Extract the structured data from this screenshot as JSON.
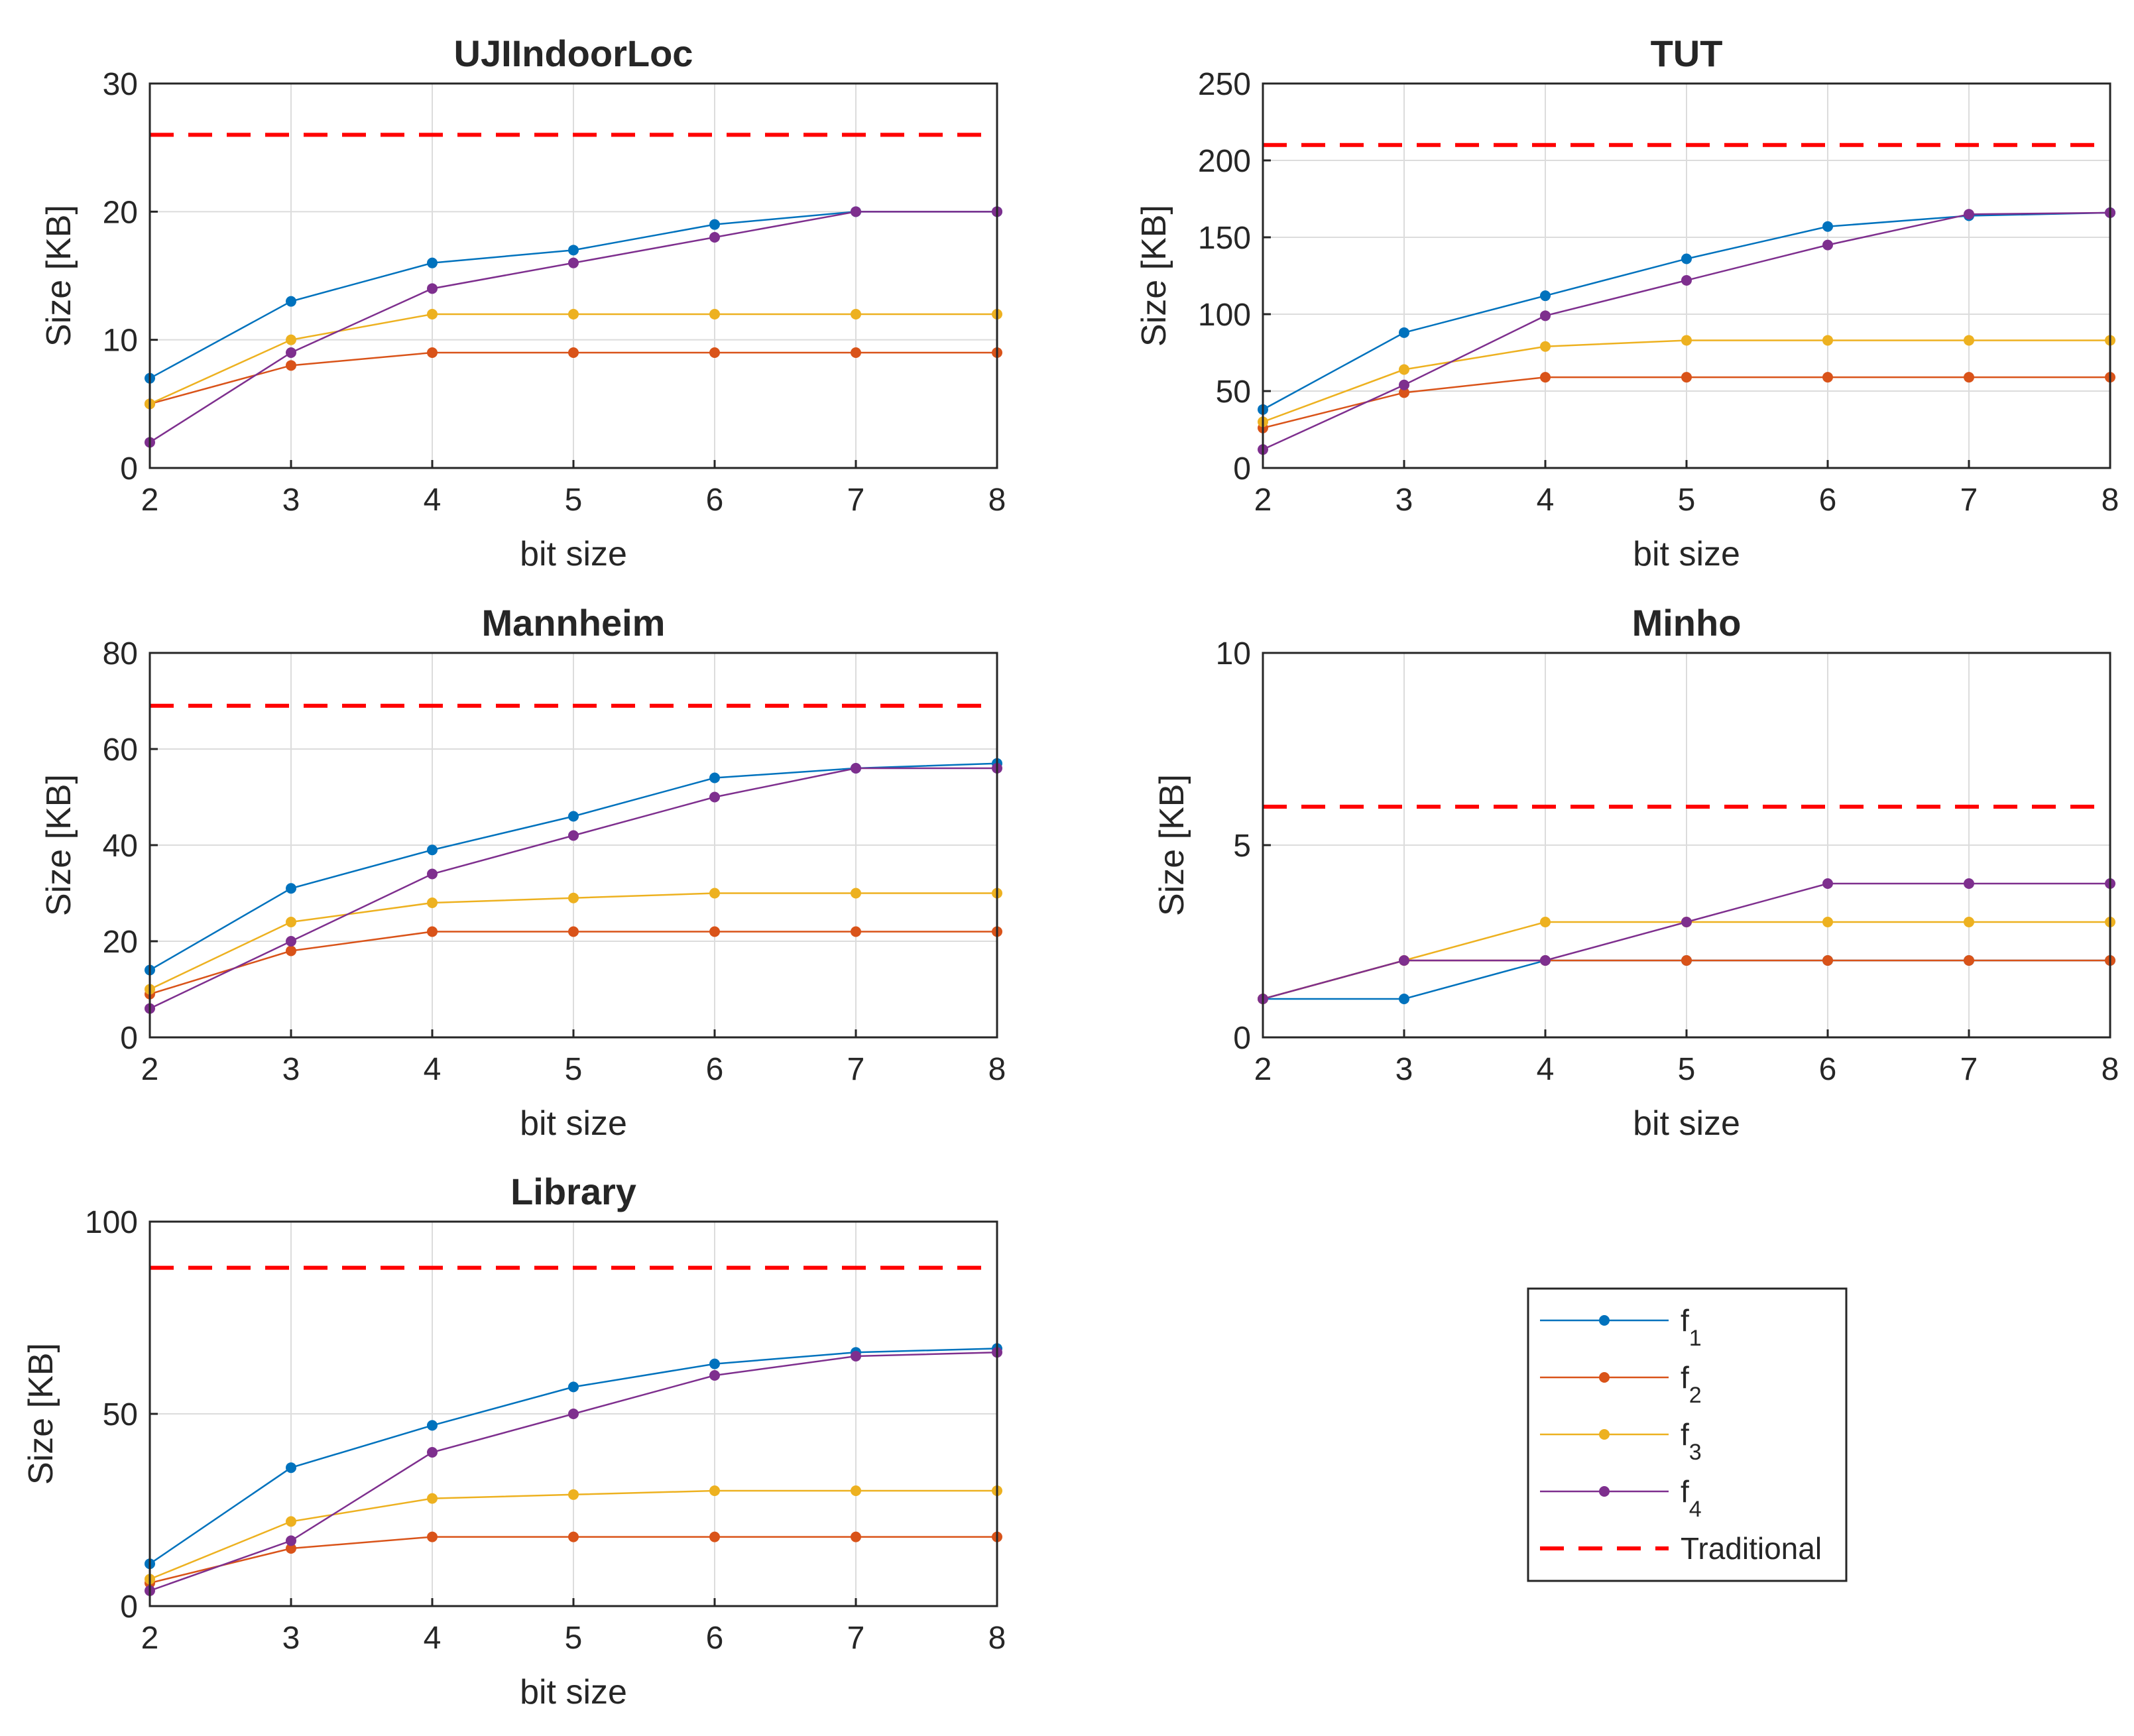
{
  "colors": {
    "f1": "#0072BD",
    "f2": "#D95319",
    "f3": "#EDB120",
    "f4": "#7E2F8E",
    "traditional": "#FF0000",
    "grid": "#DCDCDC",
    "axis": "#262626"
  },
  "legend": {
    "entries": [
      {
        "key": "f1",
        "base": "f",
        "sub": "1"
      },
      {
        "key": "f2",
        "base": "f",
        "sub": "2"
      },
      {
        "key": "f3",
        "base": "f",
        "sub": "3"
      },
      {
        "key": "f4",
        "base": "f",
        "sub": "4"
      },
      {
        "key": "traditional",
        "base": "Traditional",
        "sub": ""
      }
    ]
  },
  "chart_data": [
    {
      "type": "line",
      "title": "UJIIndoorLoc",
      "xlabel": "bit size",
      "ylabel": "Size [KB]",
      "x": [
        2,
        3,
        4,
        5,
        6,
        7,
        8
      ],
      "xlim": [
        2,
        8
      ],
      "ylim": [
        0,
        30
      ],
      "yticks": [
        0,
        10,
        20,
        30
      ],
      "series": [
        {
          "key": "f1",
          "name": "f1",
          "values": [
            7,
            13,
            16,
            17,
            19,
            20,
            20
          ]
        },
        {
          "key": "f2",
          "name": "f2",
          "values": [
            5,
            8,
            9,
            9,
            9,
            9,
            9
          ]
        },
        {
          "key": "f3",
          "name": "f3",
          "values": [
            5,
            10,
            12,
            12,
            12,
            12,
            12
          ]
        },
        {
          "key": "f4",
          "name": "f4",
          "values": [
            2,
            9,
            14,
            16,
            18,
            20,
            20
          ]
        }
      ],
      "traditional": 26
    },
    {
      "type": "line",
      "title": "TUT",
      "xlabel": "bit size",
      "ylabel": "Size [KB]",
      "x": [
        2,
        3,
        4,
        5,
        6,
        7,
        8
      ],
      "xlim": [
        2,
        8
      ],
      "ylim": [
        0,
        250
      ],
      "yticks": [
        0,
        50,
        100,
        150,
        200,
        250
      ],
      "series": [
        {
          "key": "f1",
          "name": "f1",
          "values": [
            38,
            88,
            112,
            136,
            157,
            164,
            166
          ]
        },
        {
          "key": "f2",
          "name": "f2",
          "values": [
            26,
            49,
            59,
            59,
            59,
            59,
            59
          ]
        },
        {
          "key": "f3",
          "name": "f3",
          "values": [
            30,
            64,
            79,
            83,
            83,
            83,
            83
          ]
        },
        {
          "key": "f4",
          "name": "f4",
          "values": [
            12,
            54,
            99,
            122,
            145,
            165,
            166
          ]
        }
      ],
      "traditional": 210
    },
    {
      "type": "line",
      "title": "Mannheim",
      "xlabel": "bit size",
      "ylabel": "Size [KB]",
      "x": [
        2,
        3,
        4,
        5,
        6,
        7,
        8
      ],
      "xlim": [
        2,
        8
      ],
      "ylim": [
        0,
        80
      ],
      "yticks": [
        0,
        20,
        40,
        60,
        80
      ],
      "series": [
        {
          "key": "f1",
          "name": "f1",
          "values": [
            14,
            31,
            39,
            46,
            54,
            56,
            57
          ]
        },
        {
          "key": "f2",
          "name": "f2",
          "values": [
            9,
            18,
            22,
            22,
            22,
            22,
            22
          ]
        },
        {
          "key": "f3",
          "name": "f3",
          "values": [
            10,
            24,
            28,
            29,
            30,
            30,
            30
          ]
        },
        {
          "key": "f4",
          "name": "f4",
          "values": [
            6,
            20,
            34,
            42,
            50,
            56,
            56
          ]
        }
      ],
      "traditional": 69
    },
    {
      "type": "line",
      "title": "Minho",
      "xlabel": "bit size",
      "ylabel": "Size [KB]",
      "x": [
        2,
        3,
        4,
        5,
        6,
        7,
        8
      ],
      "xlim": [
        2,
        8
      ],
      "ylim": [
        0,
        10
      ],
      "yticks": [
        0,
        5,
        10
      ],
      "series": [
        {
          "key": "f1",
          "name": "f1",
          "values": [
            1,
            1,
            2,
            2,
            2,
            2,
            2
          ]
        },
        {
          "key": "f2",
          "name": "f2",
          "values": [
            1,
            2,
            2,
            2,
            2,
            2,
            2
          ]
        },
        {
          "key": "f3",
          "name": "f3",
          "values": [
            1,
            2,
            3,
            3,
            3,
            3,
            3
          ]
        },
        {
          "key": "f4",
          "name": "f4",
          "values": [
            1,
            2,
            2,
            3,
            4,
            4,
            4
          ]
        }
      ],
      "traditional": 6
    },
    {
      "type": "line",
      "title": "Library",
      "xlabel": "bit size",
      "ylabel": "Size [KB]",
      "x": [
        2,
        3,
        4,
        5,
        6,
        7,
        8
      ],
      "xlim": [
        2,
        8
      ],
      "ylim": [
        0,
        100
      ],
      "yticks": [
        0,
        50,
        100
      ],
      "series": [
        {
          "key": "f1",
          "name": "f1",
          "values": [
            11,
            36,
            47,
            57,
            63,
            66,
            67
          ]
        },
        {
          "key": "f2",
          "name": "f2",
          "values": [
            6,
            15,
            18,
            18,
            18,
            18,
            18
          ]
        },
        {
          "key": "f3",
          "name": "f3",
          "values": [
            7,
            22,
            28,
            29,
            30,
            30,
            30
          ]
        },
        {
          "key": "f4",
          "name": "f4",
          "values": [
            4,
            17,
            40,
            50,
            60,
            65,
            66
          ]
        }
      ],
      "traditional": 88
    }
  ]
}
